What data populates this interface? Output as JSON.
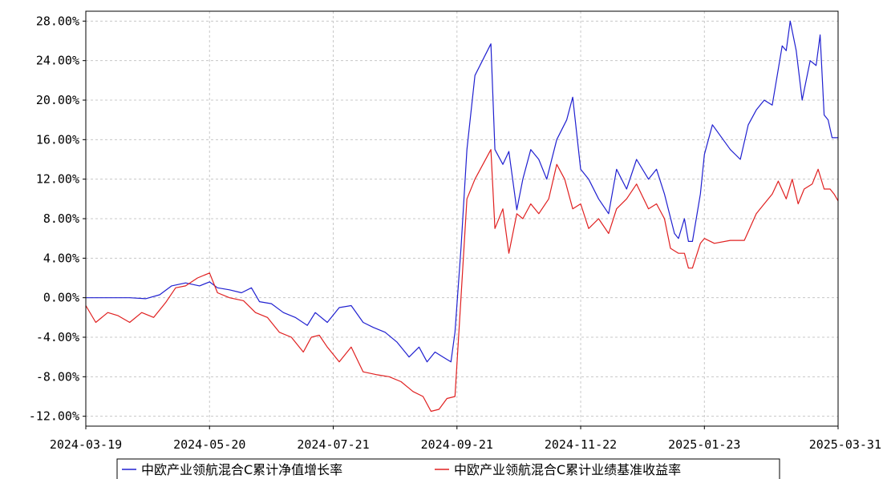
{
  "chart_data": {
    "type": "line",
    "title": "",
    "xlabel": "",
    "ylabel": "",
    "ylim": [
      -13.0,
      29.0
    ],
    "xlim": [
      "2024-03-19",
      "2025-03-31"
    ],
    "grid": true,
    "legend_position": "bottom",
    "y_ticks": [
      28,
      24,
      20,
      16,
      12,
      8,
      4,
      0,
      -4,
      -8,
      -12
    ],
    "y_tick_labels": [
      "28.00%",
      "24.00%",
      "20.00%",
      "16.00%",
      "12.00%",
      "8.00%",
      "4.00%",
      "0.00%",
      "-4.00%",
      "-8.00%",
      "-12.00%"
    ],
    "x_ticks": [
      "2024-03-19",
      "2024-05-20",
      "2024-07-21",
      "2024-09-21",
      "2024-11-22",
      "2025-01-23",
      "2025-03-31"
    ],
    "series": [
      {
        "name": "中欧产业领航混合C累计净值增长率",
        "color": "#2020d0",
        "points": [
          [
            "2024-03-19",
            0.0
          ],
          [
            "2024-04-01",
            0.0
          ],
          [
            "2024-04-10",
            0.0
          ],
          [
            "2024-04-18",
            -0.1
          ],
          [
            "2024-04-25",
            0.3
          ],
          [
            "2024-05-01",
            1.2
          ],
          [
            "2024-05-08",
            1.5
          ],
          [
            "2024-05-15",
            1.2
          ],
          [
            "2024-05-20",
            1.6
          ],
          [
            "2024-05-24",
            1.0
          ],
          [
            "2024-05-30",
            0.8
          ],
          [
            "2024-06-05",
            0.5
          ],
          [
            "2024-06-10",
            1.0
          ],
          [
            "2024-06-14",
            -0.4
          ],
          [
            "2024-06-20",
            -0.6
          ],
          [
            "2024-06-26",
            -1.5
          ],
          [
            "2024-07-02",
            -2.0
          ],
          [
            "2024-07-08",
            -2.8
          ],
          [
            "2024-07-12",
            -1.5
          ],
          [
            "2024-07-18",
            -2.5
          ],
          [
            "2024-07-24",
            -1.0
          ],
          [
            "2024-07-30",
            -0.8
          ],
          [
            "2024-08-05",
            -2.5
          ],
          [
            "2024-08-10",
            -3.0
          ],
          [
            "2024-08-16",
            -3.5
          ],
          [
            "2024-08-22",
            -4.5
          ],
          [
            "2024-08-28",
            -6.0
          ],
          [
            "2024-09-02",
            -5.0
          ],
          [
            "2024-09-06",
            -6.5
          ],
          [
            "2024-09-10",
            -5.5
          ],
          [
            "2024-09-14",
            -6.0
          ],
          [
            "2024-09-18",
            -6.5
          ],
          [
            "2024-09-20",
            -3.5
          ],
          [
            "2024-09-23",
            5.0
          ],
          [
            "2024-09-26",
            15.0
          ],
          [
            "2024-09-30",
            22.5
          ],
          [
            "2024-10-08",
            25.7
          ],
          [
            "2024-10-10",
            15.0
          ],
          [
            "2024-10-14",
            13.5
          ],
          [
            "2024-10-17",
            14.8
          ],
          [
            "2024-10-21",
            8.9
          ],
          [
            "2024-10-24",
            12.0
          ],
          [
            "2024-10-28",
            15.0
          ],
          [
            "2024-11-01",
            14.0
          ],
          [
            "2024-11-05",
            12.0
          ],
          [
            "2024-11-10",
            16.0
          ],
          [
            "2024-11-15",
            18.0
          ],
          [
            "2024-11-18",
            20.3
          ],
          [
            "2024-11-22",
            13.0
          ],
          [
            "2024-11-26",
            12.0
          ],
          [
            "2024-12-01",
            10.0
          ],
          [
            "2024-12-06",
            8.5
          ],
          [
            "2024-12-10",
            13.0
          ],
          [
            "2024-12-15",
            11.0
          ],
          [
            "2024-12-20",
            14.0
          ],
          [
            "2024-12-26",
            12.0
          ],
          [
            "2024-12-30",
            13.0
          ],
          [
            "2025-01-03",
            10.5
          ],
          [
            "2025-01-08",
            6.5
          ],
          [
            "2025-01-10",
            6.0
          ],
          [
            "2025-01-13",
            8.0
          ],
          [
            "2025-01-15",
            5.7
          ],
          [
            "2025-01-17",
            5.7
          ],
          [
            "2025-01-21",
            10.5
          ],
          [
            "2025-01-23",
            14.5
          ],
          [
            "2025-01-27",
            17.5
          ],
          [
            "2025-02-05",
            15.0
          ],
          [
            "2025-02-10",
            14.0
          ],
          [
            "2025-02-14",
            17.5
          ],
          [
            "2025-02-18",
            19.0
          ],
          [
            "2025-02-22",
            20.0
          ],
          [
            "2025-02-26",
            19.5
          ],
          [
            "2025-03-03",
            25.5
          ],
          [
            "2025-03-05",
            25.0
          ],
          [
            "2025-03-07",
            28.0
          ],
          [
            "2025-03-10",
            25.0
          ],
          [
            "2025-03-13",
            20.0
          ],
          [
            "2025-03-17",
            24.0
          ],
          [
            "2025-03-20",
            23.5
          ],
          [
            "2025-03-22",
            26.6
          ],
          [
            "2025-03-24",
            18.5
          ],
          [
            "2025-03-26",
            18.0
          ],
          [
            "2025-03-28",
            16.2
          ],
          [
            "2025-03-31",
            16.2
          ]
        ]
      },
      {
        "name": "中欧产业领航混合C累计业绩基准收益率",
        "color": "#e02020",
        "points": [
          [
            "2024-03-19",
            -0.8
          ],
          [
            "2024-03-24",
            -2.5
          ],
          [
            "2024-03-30",
            -1.5
          ],
          [
            "2024-04-04",
            -1.8
          ],
          [
            "2024-04-10",
            -2.5
          ],
          [
            "2024-04-16",
            -1.5
          ],
          [
            "2024-04-22",
            -2.0
          ],
          [
            "2024-04-28",
            -0.5
          ],
          [
            "2024-05-03",
            1.0
          ],
          [
            "2024-05-08",
            1.2
          ],
          [
            "2024-05-14",
            2.0
          ],
          [
            "2024-05-20",
            2.5
          ],
          [
            "2024-05-24",
            0.5
          ],
          [
            "2024-05-30",
            0.0
          ],
          [
            "2024-06-06",
            -0.3
          ],
          [
            "2024-06-12",
            -1.5
          ],
          [
            "2024-06-18",
            -2.0
          ],
          [
            "2024-06-24",
            -3.5
          ],
          [
            "2024-06-30",
            -4.0
          ],
          [
            "2024-07-06",
            -5.5
          ],
          [
            "2024-07-10",
            -4.0
          ],
          [
            "2024-07-14",
            -3.8
          ],
          [
            "2024-07-18",
            -5.0
          ],
          [
            "2024-07-24",
            -6.5
          ],
          [
            "2024-07-30",
            -5.0
          ],
          [
            "2024-08-05",
            -7.5
          ],
          [
            "2024-08-12",
            -7.8
          ],
          [
            "2024-08-18",
            -8.0
          ],
          [
            "2024-08-24",
            -8.5
          ],
          [
            "2024-08-30",
            -9.5
          ],
          [
            "2024-09-04",
            -10.0
          ],
          [
            "2024-09-08",
            -11.5
          ],
          [
            "2024-09-12",
            -11.3
          ],
          [
            "2024-09-16",
            -10.2
          ],
          [
            "2024-09-20",
            -10.0
          ],
          [
            "2024-09-23",
            0.0
          ],
          [
            "2024-09-26",
            10.0
          ],
          [
            "2024-09-30",
            12.0
          ],
          [
            "2024-10-08",
            15.0
          ],
          [
            "2024-10-10",
            7.0
          ],
          [
            "2024-10-14",
            9.0
          ],
          [
            "2024-10-17",
            4.5
          ],
          [
            "2024-10-21",
            8.5
          ],
          [
            "2024-10-24",
            8.0
          ],
          [
            "2024-10-28",
            9.5
          ],
          [
            "2024-11-01",
            8.5
          ],
          [
            "2024-11-06",
            10.0
          ],
          [
            "2024-11-10",
            13.5
          ],
          [
            "2024-11-14",
            12.0
          ],
          [
            "2024-11-18",
            9.0
          ],
          [
            "2024-11-22",
            9.5
          ],
          [
            "2024-11-26",
            7.0
          ],
          [
            "2024-12-01",
            8.0
          ],
          [
            "2024-12-06",
            6.5
          ],
          [
            "2024-12-10",
            9.0
          ],
          [
            "2024-12-15",
            10.0
          ],
          [
            "2024-12-20",
            11.5
          ],
          [
            "2024-12-26",
            9.0
          ],
          [
            "2024-12-30",
            9.5
          ],
          [
            "2025-01-03",
            8.0
          ],
          [
            "2025-01-06",
            5.0
          ],
          [
            "2025-01-10",
            4.5
          ],
          [
            "2025-01-13",
            4.5
          ],
          [
            "2025-01-15",
            3.0
          ],
          [
            "2025-01-17",
            3.0
          ],
          [
            "2025-01-21",
            5.5
          ],
          [
            "2025-01-23",
            6.0
          ],
          [
            "2025-01-28",
            5.5
          ],
          [
            "2025-02-05",
            5.8
          ],
          [
            "2025-02-12",
            5.8
          ],
          [
            "2025-02-18",
            8.5
          ],
          [
            "2025-02-22",
            9.5
          ],
          [
            "2025-02-26",
            10.5
          ],
          [
            "2025-03-01",
            11.8
          ],
          [
            "2025-03-05",
            10.0
          ],
          [
            "2025-03-08",
            12.0
          ],
          [
            "2025-03-11",
            9.5
          ],
          [
            "2025-03-14",
            11.0
          ],
          [
            "2025-03-18",
            11.5
          ],
          [
            "2025-03-21",
            13.0
          ],
          [
            "2025-03-24",
            11.0
          ],
          [
            "2025-03-27",
            11.0
          ],
          [
            "2025-03-29",
            10.5
          ],
          [
            "2025-03-31",
            9.8
          ]
        ]
      }
    ]
  }
}
